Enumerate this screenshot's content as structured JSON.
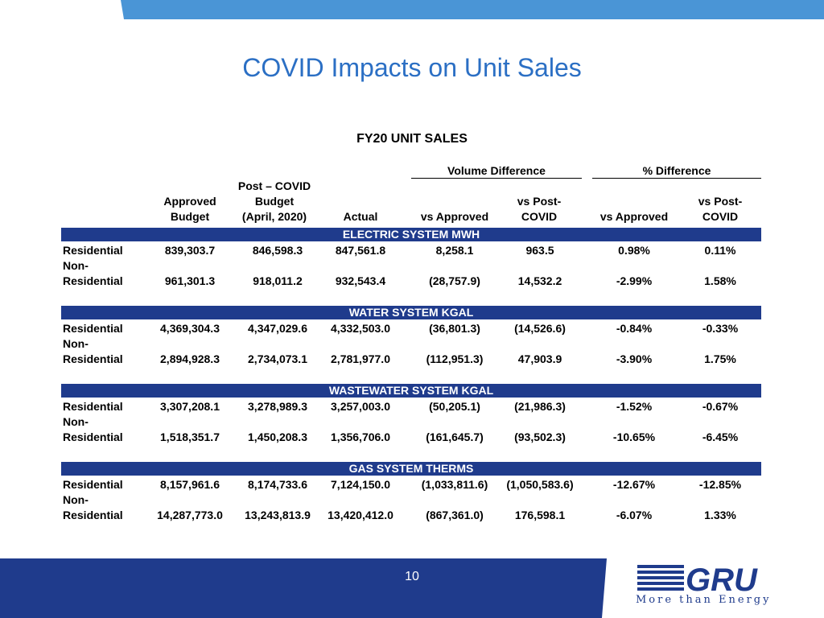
{
  "title": "COVID Impacts on Unit Sales",
  "subtitle": "FY20 UNIT SALES",
  "groups": {
    "volume": "Volume Difference",
    "pct": "% Difference"
  },
  "headers": {
    "approved": [
      "Approved",
      "Budget"
    ],
    "post": [
      "Post – COVID",
      "Budget",
      "(April, 2020)"
    ],
    "actual": "Actual",
    "vol_approved": "vs Approved",
    "vol_post": [
      "vs Post-",
      "COVID"
    ],
    "pct_approved": "vs Approved",
    "pct_post": [
      "vs Post-",
      "COVID"
    ]
  },
  "sections": [
    {
      "name": "ELECTRIC SYSTEM MWH",
      "rows": [
        {
          "label": "Residential",
          "values": [
            "839,303.7",
            "846,598.3",
            "847,561.8",
            "8,258.1",
            "963.5",
            "0.98%",
            "0.11%"
          ]
        },
        {
          "label": [
            "Non-",
            "Residential"
          ],
          "values": [
            "961,301.3",
            "918,011.2",
            "932,543.4",
            "(28,757.9)",
            "14,532.2",
            "-2.99%",
            "1.58%"
          ]
        }
      ]
    },
    {
      "name": "WATER SYSTEM KGAL",
      "rows": [
        {
          "label": "Residential",
          "values": [
            "4,369,304.3",
            "4,347,029.6",
            "4,332,503.0",
            "(36,801.3)",
            "(14,526.6)",
            "-0.84%",
            "-0.33%"
          ]
        },
        {
          "label": [
            "Non-",
            "Residential"
          ],
          "values": [
            "2,894,928.3",
            "2,734,073.1",
            "2,781,977.0",
            "(112,951.3)",
            "47,903.9",
            "-3.90%",
            "1.75%"
          ]
        }
      ]
    },
    {
      "name": "WASTEWATER SYSTEM KGAL",
      "rows": [
        {
          "label": "Residential",
          "values": [
            "3,307,208.1",
            "3,278,989.3",
            "3,257,003.0",
            "(50,205.1)",
            "(21,986.3)",
            "-1.52%",
            "-0.67%"
          ]
        },
        {
          "label": [
            "Non-",
            "Residential"
          ],
          "values": [
            "1,518,351.7",
            "1,450,208.3",
            "1,356,706.0",
            "(161,645.7)",
            "(93,502.3)",
            "-10.65%",
            "-6.45%"
          ]
        }
      ]
    },
    {
      "name": "GAS SYSTEM THERMS",
      "rows": [
        {
          "label": "Residential",
          "values": [
            "8,157,961.6",
            "8,174,733.6",
            "7,124,150.0",
            "(1,033,811.6)",
            "(1,050,583.6)",
            "-12.67%",
            "-12.85%"
          ]
        },
        {
          "label": [
            "Non-",
            "Residential"
          ],
          "values": [
            "14,287,773.0",
            "13,243,813.9",
            "13,420,412.0",
            "(867,361.0)",
            "176,598.1",
            "-6.07%",
            "1.33%"
          ]
        }
      ]
    }
  ],
  "footer": {
    "page_number": "10",
    "logo_text": "GRU",
    "tagline": "More than Energy"
  },
  "colors": {
    "title": "#2b6fc4",
    "band": "#1f3b8c",
    "top_bar": "#4a95d6"
  }
}
